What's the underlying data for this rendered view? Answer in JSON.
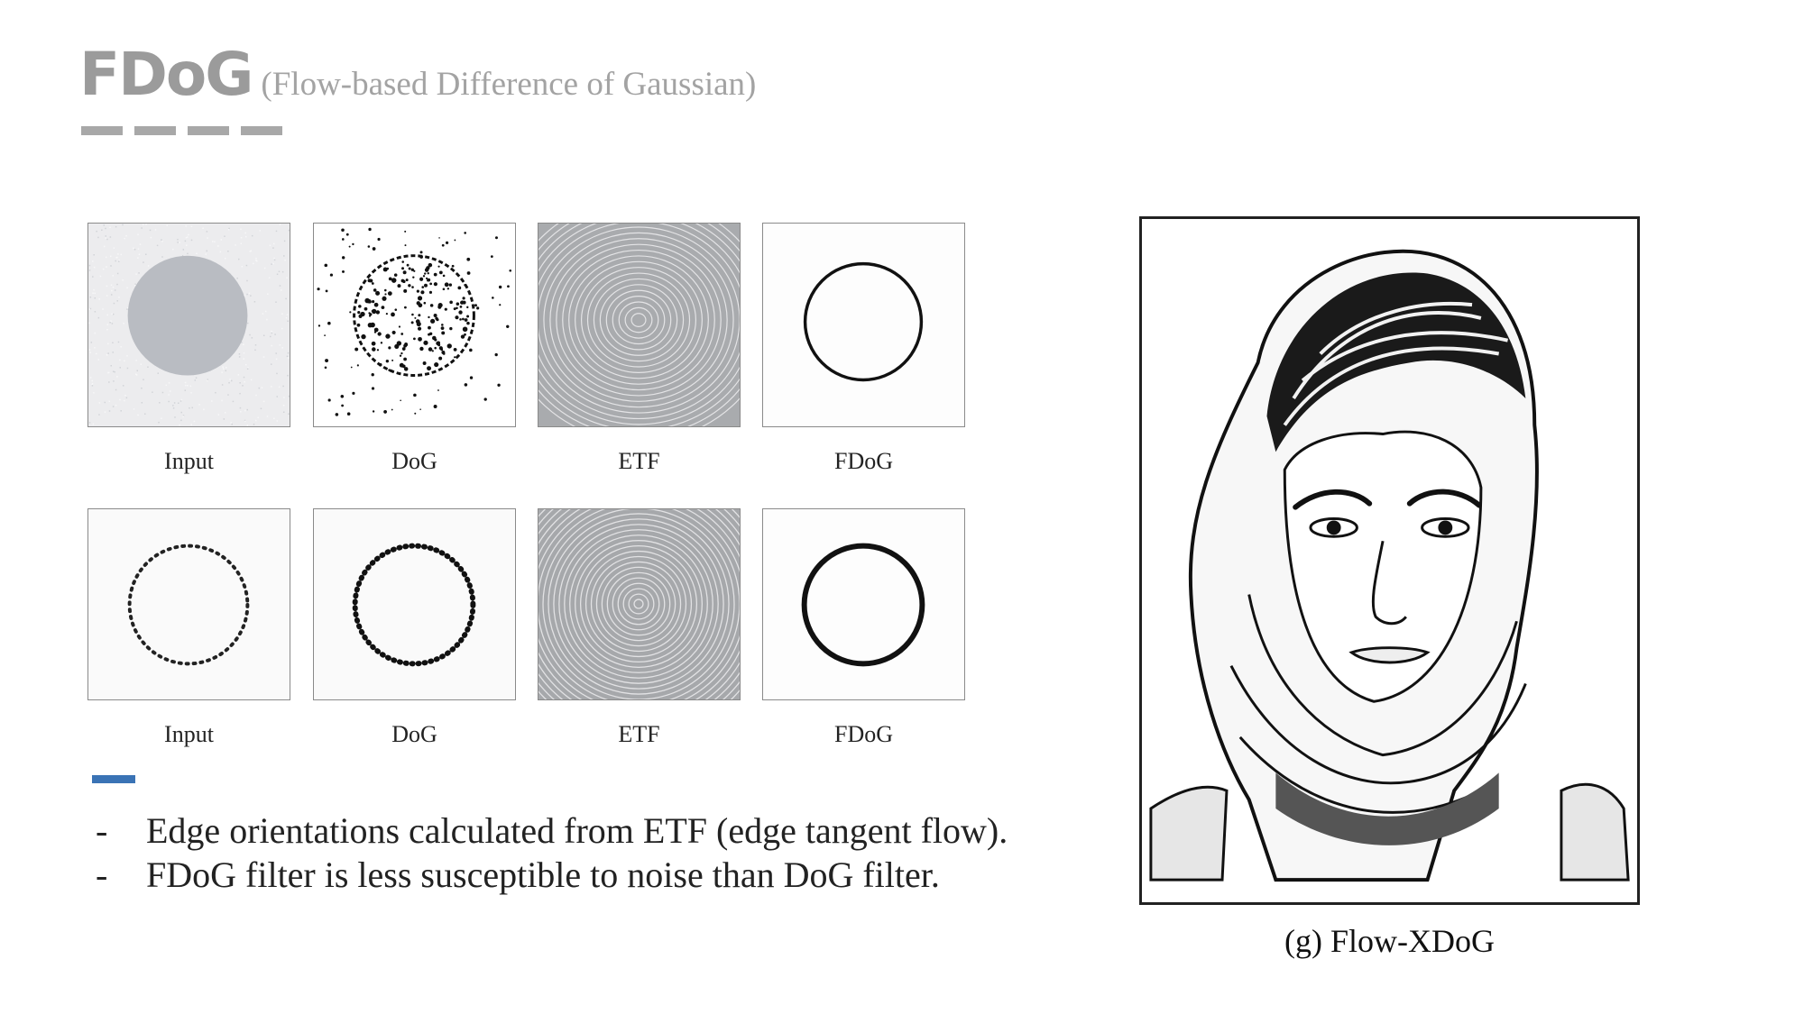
{
  "header": {
    "title": "FDoG",
    "subtitle": "(Flow-based Difference of Gaussian)"
  },
  "figure": {
    "row1": [
      "Input",
      "DoG",
      "ETF",
      "FDoG"
    ],
    "row2": [
      "Input",
      "DoG",
      "ETF",
      "FDoG"
    ]
  },
  "bullets": [
    {
      "marker": "-",
      "text": "Edge orientations calculated from ETF (edge tangent flow)."
    },
    {
      "marker": "-",
      "text": "FDoG filter is less susceptible to noise than DoG filter."
    }
  ],
  "portrait": {
    "caption": "(g) Flow-XDoG"
  },
  "colors": {
    "title": "#9b9b9b",
    "accent_bar": "#3a73b5",
    "dash_bar": "#a8a8a8"
  }
}
